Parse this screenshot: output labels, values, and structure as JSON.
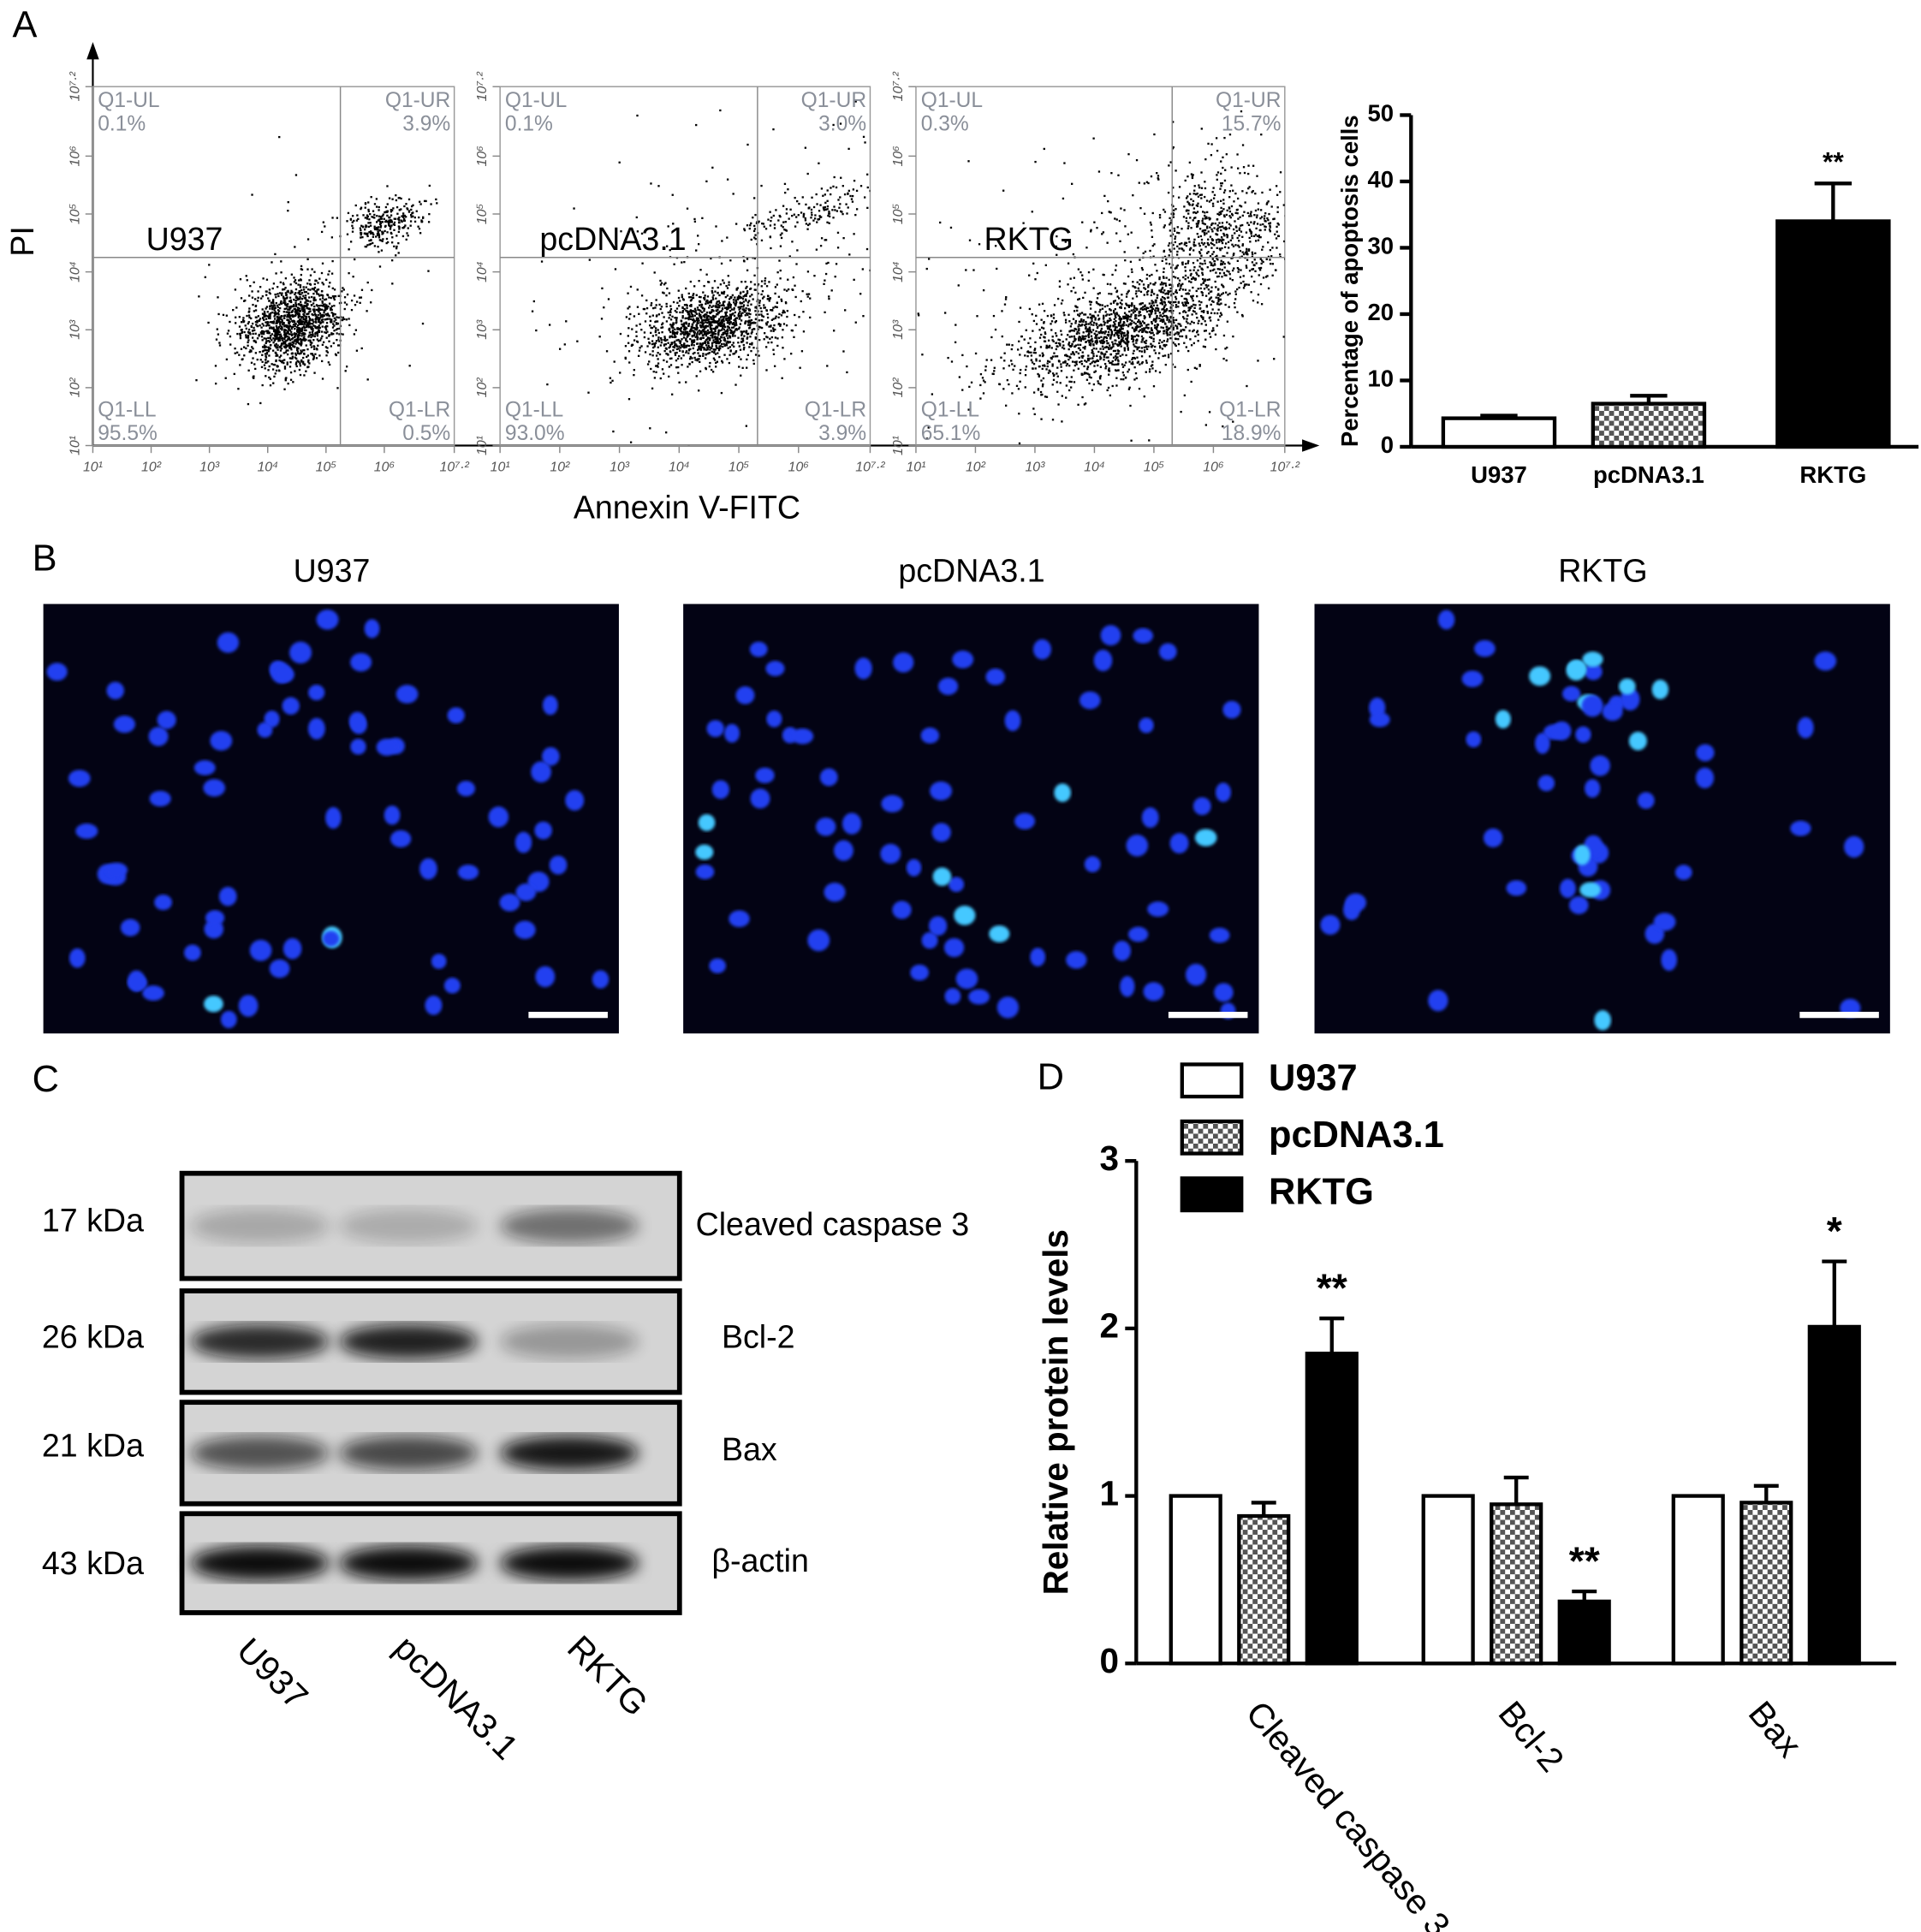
{
  "panel_labels": [
    "A",
    "B",
    "C",
    "D"
  ],
  "flow_cytometry": {
    "y_label": "PI",
    "x_label": "Annexin V-FITC",
    "ticks": [
      {
        "value": 1,
        "label": "10¹"
      },
      {
        "value": 2,
        "label": "10²"
      },
      {
        "value": 3,
        "label": "10³"
      },
      {
        "value": 4,
        "label": "10⁴"
      },
      {
        "value": 5,
        "label": "10⁵"
      },
      {
        "value": 6,
        "label": "10⁶"
      },
      {
        "value": 7.2,
        "label": "10⁷·²"
      }
    ],
    "plots": [
      {
        "label": "U937",
        "quadrants": [
          {
            "name": "Q1-UL",
            "value": "0.1%"
          },
          {
            "name": "Q1-UR",
            "value": "3.9%"
          },
          {
            "name": "Q1-LL",
            "value": "95.5%"
          },
          {
            "name": "Q1-LR",
            "value": "0.5%"
          }
        ]
      },
      {
        "label": "pcDNA3.1",
        "quadrants": [
          {
            "name": "Q1-UL",
            "value": "0.1%"
          },
          {
            "name": "Q1-UR",
            "value": "3.0%"
          },
          {
            "name": "Q1-LL",
            "value": "93.0%"
          },
          {
            "name": "Q1-LR",
            "value": "3.9%"
          }
        ]
      },
      {
        "label": "RKTG",
        "quadrants": [
          {
            "name": "Q1-UL",
            "value": "0.3%"
          },
          {
            "name": "Q1-UR",
            "value": "15.7%"
          },
          {
            "name": "Q1-LL",
            "value": "65.1%"
          },
          {
            "name": "Q1-LR",
            "value": "18.9%"
          }
        ]
      }
    ]
  },
  "microscopy": {
    "titles": [
      "U937",
      "pcDNA3.1",
      "RKTG"
    ]
  },
  "western_blot": {
    "markers": [
      "17 kDa",
      "26 kDa",
      "21 kDa",
      "43 kDa"
    ],
    "proteins": [
      "Cleaved caspase 3",
      "Bcl-2",
      "Bax",
      "β-actin"
    ],
    "lanes": [
      "U937",
      "pcDNA3.1",
      "RKTG"
    ]
  },
  "chart_data": [
    {
      "type": "bar",
      "y_label": "Percentage of apoptosis cells",
      "categories": [
        "U937",
        "pcDNA3.1",
        "RKTG"
      ],
      "values": [
        4.3,
        6.5,
        34
      ],
      "errors": [
        0.4,
        1.2,
        5.7
      ],
      "significance": [
        null,
        null,
        "**"
      ],
      "colors": [
        "#ffffff",
        "#888888",
        "#000000"
      ],
      "patterns": [
        null,
        "checker",
        null
      ],
      "ylim": [
        0,
        50
      ],
      "yticks": [
        0,
        10,
        20,
        30,
        40,
        50
      ]
    },
    {
      "type": "grouped_bar",
      "y_label": "Relative protein levels",
      "categories": [
        "Cleaved caspase 3",
        "Bcl-2",
        "Bax"
      ],
      "series": [
        {
          "name": "U937",
          "color": "#ffffff",
          "values": [
            1,
            1,
            1
          ]
        },
        {
          "name": "pcDNA3.1",
          "color": "#888888",
          "pattern": "checker",
          "values": [
            0.88,
            0.95,
            0.96
          ],
          "errors": [
            0.08,
            0.16,
            0.1
          ]
        },
        {
          "name": "RKTG",
          "color": "#000000",
          "values": [
            1.85,
            0.37,
            2.01
          ],
          "errors": [
            0.21,
            0.06,
            0.39
          ],
          "significance": [
            "**",
            "**",
            "*"
          ]
        }
      ],
      "ylim": [
        0,
        3
      ],
      "yticks": [
        0,
        1,
        2,
        3
      ],
      "legend": "top-left"
    }
  ]
}
